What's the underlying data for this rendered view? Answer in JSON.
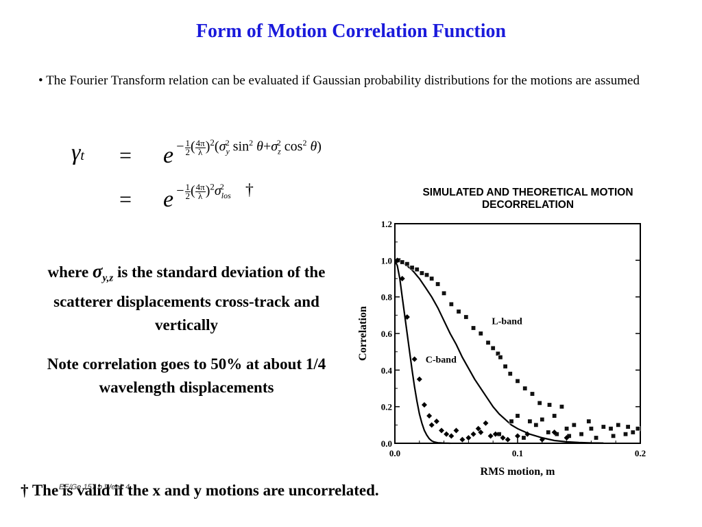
{
  "slide": {
    "title": "Form of Motion Correlation Function",
    "bullet_symbol": "•",
    "bullet_text": "The Fourier Transform relation can be evaluated if Gaussian probability distributions for the motions are assumed",
    "equation": {
      "lhs": "γt",
      "eq_sign": "=",
      "row1_exponent": "−½(4π/λ)²(σy² sin²θ + σz² cos²θ)",
      "row2_exponent": "−½(4π/λ)²σlos²",
      "dagger": "†"
    },
    "note_where_pre": "where",
    "note_sigma": "σ",
    "note_sigma_sub": "y,z",
    "note_where_post": "is the standard deviation of the scatterer displacements cross-track and vertically",
    "note_correlation": "Note correlation goes to 50% at about 1/4 wavelength displacements",
    "footer": "† The is valid if the x and y motions are uncorrelated.",
    "course_label": "EE/Ge 157 b Week 4"
  },
  "chart_data": {
    "type": "line",
    "title": "SIMULATED AND THEORETICAL MOTION DECORRELATION",
    "xlabel": "RMS motion, m",
    "ylabel": "Correlation",
    "xlim": [
      0.0,
      0.2
    ],
    "ylim": [
      0.0,
      1.2
    ],
    "x_ticks": [
      "0.0",
      "0.1",
      "0.2"
    ],
    "y_ticks": [
      "0.0",
      "0.2",
      "0.4",
      "0.6",
      "0.8",
      "1.0",
      "1.2"
    ],
    "annotations": [
      "L-band",
      "C-band"
    ],
    "series": [
      {
        "name": "L-band",
        "curve_x": [
          0,
          0.005,
          0.01,
          0.015,
          0.02,
          0.025,
          0.03,
          0.035,
          0.04,
          0.045,
          0.05,
          0.055,
          0.06,
          0.065,
          0.07,
          0.075,
          0.08,
          0.085,
          0.09,
          0.095,
          0.1,
          0.11,
          0.12,
          0.13,
          0.14,
          0.15,
          0.16,
          0.17
        ],
        "curve_y": [
          1.0,
          0.99,
          0.97,
          0.94,
          0.9,
          0.85,
          0.8,
          0.74,
          0.67,
          0.6,
          0.54,
          0.47,
          0.41,
          0.35,
          0.3,
          0.25,
          0.2,
          0.16,
          0.13,
          0.1,
          0.08,
          0.05,
          0.03,
          0.015,
          0.008,
          0.004,
          0.002,
          0.001
        ],
        "points": [
          [
            0.003,
            1.0
          ],
          [
            0.006,
            0.99
          ],
          [
            0.01,
            0.98
          ],
          [
            0.014,
            0.96
          ],
          [
            0.018,
            0.95
          ],
          [
            0.022,
            0.93
          ],
          [
            0.026,
            0.92
          ],
          [
            0.03,
            0.9
          ],
          [
            0.035,
            0.87
          ],
          [
            0.04,
            0.82
          ],
          [
            0.046,
            0.76
          ],
          [
            0.052,
            0.72
          ],
          [
            0.058,
            0.69
          ],
          [
            0.064,
            0.63
          ],
          [
            0.07,
            0.6
          ],
          [
            0.076,
            0.55
          ],
          [
            0.08,
            0.52
          ],
          [
            0.084,
            0.49
          ],
          [
            0.086,
            0.47
          ],
          [
            0.09,
            0.42
          ],
          [
            0.094,
            0.38
          ],
          [
            0.1,
            0.34
          ],
          [
            0.106,
            0.3
          ],
          [
            0.112,
            0.27
          ],
          [
            0.118,
            0.22
          ],
          [
            0.126,
            0.21
          ],
          [
            0.13,
            0.15
          ],
          [
            0.136,
            0.2
          ],
          [
            0.1,
            0.15
          ],
          [
            0.11,
            0.12
          ],
          [
            0.12,
            0.13
          ],
          [
            0.125,
            0.06
          ],
          [
            0.132,
            0.05
          ],
          [
            0.14,
            0.08
          ],
          [
            0.146,
            0.1
          ],
          [
            0.152,
            0.05
          ],
          [
            0.158,
            0.12
          ],
          [
            0.164,
            0.03
          ],
          [
            0.17,
            0.09
          ],
          [
            0.176,
            0.08
          ],
          [
            0.182,
            0.1
          ],
          [
            0.188,
            0.05
          ],
          [
            0.194,
            0.06
          ],
          [
            0.198,
            0.08
          ],
          [
            0.085,
            0.05
          ],
          [
            0.095,
            0.12
          ],
          [
            0.105,
            0.03
          ],
          [
            0.115,
            0.1
          ],
          [
            0.142,
            0.04
          ],
          [
            0.16,
            0.08
          ],
          [
            0.178,
            0.04
          ],
          [
            0.19,
            0.09
          ]
        ]
      },
      {
        "name": "C-band",
        "curve_x": [
          0,
          0.002,
          0.004,
          0.006,
          0.008,
          0.01,
          0.012,
          0.014,
          0.016,
          0.018,
          0.02,
          0.022,
          0.024,
          0.026,
          0.028,
          0.03,
          0.032,
          0.035,
          0.04,
          0.045
        ],
        "curve_y": [
          1.0,
          0.97,
          0.9,
          0.8,
          0.7,
          0.6,
          0.5,
          0.4,
          0.31,
          0.23,
          0.16,
          0.11,
          0.07,
          0.045,
          0.025,
          0.013,
          0.007,
          0.003,
          0.001,
          0.0
        ],
        "points": [
          [
            0.002,
            1.0
          ],
          [
            0.006,
            0.9
          ],
          [
            0.01,
            0.69
          ],
          [
            0.016,
            0.46
          ],
          [
            0.02,
            0.35
          ],
          [
            0.024,
            0.21
          ],
          [
            0.028,
            0.15
          ],
          [
            0.03,
            0.1
          ],
          [
            0.034,
            0.12
          ],
          [
            0.038,
            0.07
          ],
          [
            0.042,
            0.05
          ],
          [
            0.046,
            0.04
          ],
          [
            0.05,
            0.07
          ],
          [
            0.055,
            0.02
          ],
          [
            0.06,
            0.03
          ],
          [
            0.064,
            0.05
          ],
          [
            0.068,
            0.08
          ],
          [
            0.07,
            0.06
          ],
          [
            0.074,
            0.11
          ],
          [
            0.078,
            0.04
          ],
          [
            0.082,
            0.05
          ],
          [
            0.088,
            0.03
          ],
          [
            0.092,
            0.02
          ],
          [
            0.1,
            0.04
          ],
          [
            0.108,
            0.05
          ],
          [
            0.12,
            0.02
          ],
          [
            0.13,
            0.06
          ],
          [
            0.14,
            0.03
          ]
        ]
      }
    ]
  }
}
